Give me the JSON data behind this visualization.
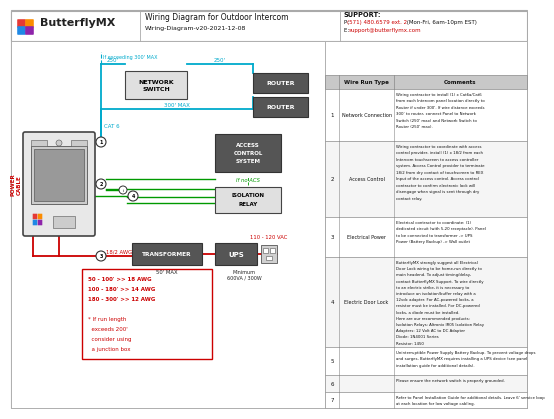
{
  "title": "Wiring Diagram for Outdoor Intercom",
  "subtitle": "Wiring-Diagram-v20-2021-12-08",
  "logo_text": "ButterflyMX",
  "support_title": "SUPPORT:",
  "support_phone_label": "P: ",
  "support_phone_red": "(571) 480.6579 ext. 2",
  "support_phone_suffix": " (Mon-Fri, 6am-10pm EST)",
  "support_email_label": "E: ",
  "support_email_red": "support@butterflymx.com",
  "bg_color": "#ffffff",
  "cyan": "#00aacc",
  "red": "#cc0000",
  "green": "#009900",
  "dark": "#222222",
  "gray_box": "#e0e0e0",
  "dark_box": "#555555",
  "table_header_bg": "#c8c8c8",
  "logo_colors": [
    "#e53935",
    "#fb8c00",
    "#1e88e5",
    "#8e24aa"
  ],
  "awg_lines": [
    "50 - 100' >> 18 AWG",
    "100 - 180' >> 14 AWG",
    "180 - 300' >> 12 AWG",
    "",
    "* If run length",
    "  exceeds 200'",
    "  consider using",
    "  a junction box"
  ],
  "rows": [
    {
      "num": "1",
      "type": "Network Connection",
      "comments": [
        "Wiring contractor to install (1) x Cat6a/Cat6",
        "from each Intercom panel location directly to",
        "Router if under 300'. If wire distance exceeds",
        "300' to router, connect Panel to Network",
        "Switch (250' max) and Network Switch to",
        "Router (250' max)."
      ]
    },
    {
      "num": "2",
      "type": "Access Control",
      "comments": [
        "Wiring contractor to coordinate with access",
        "control provider, install (1) x 18/2 from each",
        "Intercom touchscreen to access controller",
        "system. Access Control provider to terminate",
        "18/2 from dry contact of touchscreen to REX",
        "Input of the access control. Access control",
        "contractor to confirm electronic lock will",
        "disengage when signal is sent through dry",
        "contact relay."
      ]
    },
    {
      "num": "3",
      "type": "Electrical Power",
      "comments": [
        "Electrical contractor to coordinate: (1)",
        "dedicated circuit (with 5-20 receptacle). Panel",
        "to be connected to transformer -> UPS",
        "Power (Battery Backup) -> Wall outlet"
      ]
    },
    {
      "num": "4",
      "type": "Electric Door Lock",
      "comments": [
        "ButterflyMX strongly suggest all Electrical",
        "Door Lock wiring to be home-run directly to",
        "main headend. To adjust timing/delay,",
        "contact ButterflyMX Support. To wire directly",
        "to an electric strike, it is necessary to",
        "introduce an isolation/buffer relay with a",
        "12vdc adapter. For AC-powered locks, a",
        "resistor must be installed. For DC-powered",
        "locks, a diode must be installed.",
        "Here are our recommended products:",
        "Isolation Relays: Altronix IR05 Isolation Relay",
        "Adapters: 12 Volt AC to DC Adapter",
        "Diode: 1N4001 Series",
        "Resistor: 1450"
      ]
    },
    {
      "num": "5",
      "type": "",
      "comments": [
        "Uninterruptible Power Supply Battery Backup. To prevent voltage drops",
        "and surges, ButterflyMX requires installing a UPS device (see panel",
        "installation guide for additional details)."
      ]
    },
    {
      "num": "6",
      "type": "",
      "comments": [
        "Please ensure the network switch is properly grounded."
      ]
    },
    {
      "num": "7",
      "type": "",
      "comments": [
        "Refer to Panel Installation Guide for additional details. Leave 6' service loop",
        "at each location for low voltage cabling."
      ]
    }
  ]
}
